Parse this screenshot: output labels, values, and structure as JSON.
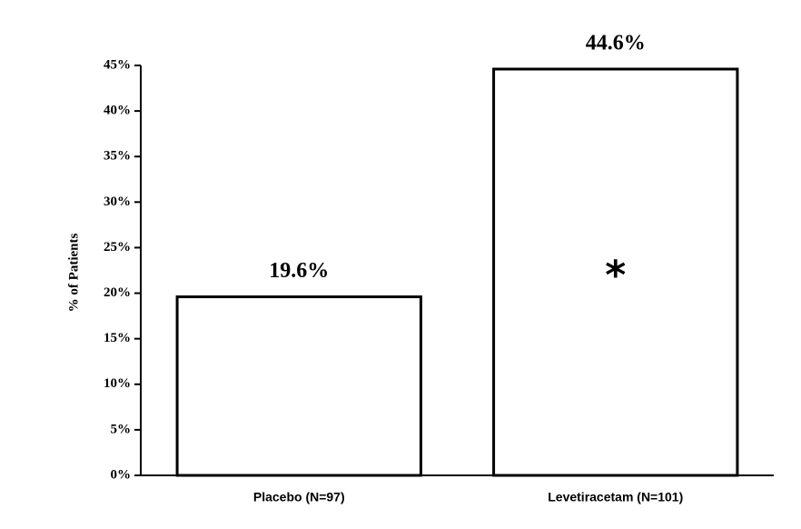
{
  "chart_data": {
    "type": "bar",
    "y_axis_label": "% of Patients",
    "categories": [
      "Placebo (N=97)",
      "Levetiracetam (N=101)"
    ],
    "values": [
      19.6,
      44.6
    ],
    "value_labels": [
      "19.6%",
      "44.6%"
    ],
    "color": "#ffffff",
    "ylim": [
      0,
      45
    ],
    "yticks": [
      {
        "value": 0,
        "label": "0%"
      },
      {
        "value": 5,
        "label": "5%"
      },
      {
        "value": 10,
        "label": "10%"
      },
      {
        "value": 15,
        "label": "15%"
      },
      {
        "value": 20,
        "label": "20%"
      },
      {
        "value": 25,
        "label": "25%"
      },
      {
        "value": 30,
        "label": "30%"
      },
      {
        "value": 35,
        "label": "35%"
      },
      {
        "value": 40,
        "label": "40%"
      },
      {
        "value": 45,
        "label": "45%"
      }
    ],
    "grid": false,
    "annotation": "*"
  }
}
